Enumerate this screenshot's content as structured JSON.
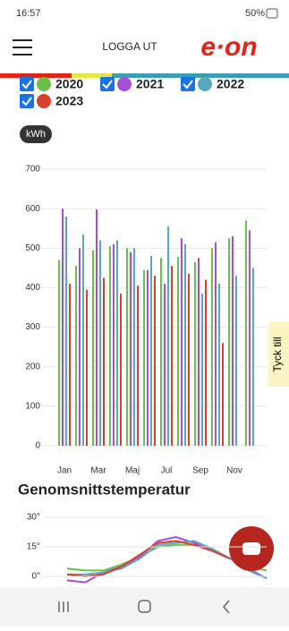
{
  "status_bar": {
    "time": "16:57",
    "battery": "50%"
  },
  "header": {
    "title": "LOGGA UT",
    "logo": "e·on"
  },
  "feedback": "Tyck till",
  "chart_data": [
    {
      "type": "bar",
      "y_label": "kWh",
      "categories": [
        "Jan",
        null,
        "Mar",
        null,
        "Maj",
        null,
        "Jul",
        null,
        "Sep",
        null,
        "Nov",
        null
      ],
      "series": [
        {
          "name": "2020",
          "color": "#6abf4b",
          "values": [
            470,
            455,
            495,
            505,
            500,
            445,
            475,
            478,
            465,
            500,
            525,
            570
          ]
        },
        {
          "name": "2021",
          "color": "#a64fd6",
          "values": [
            600,
            500,
            598,
            510,
            490,
            445,
            410,
            525,
            475,
            515,
            530,
            545
          ]
        },
        {
          "name": "2022",
          "color": "#5aa8c0",
          "values": [
            580,
            535,
            520,
            520,
            500,
            480,
            555,
            510,
            385,
            410,
            430,
            450
          ]
        },
        {
          "name": "2023",
          "color": "#d9412c",
          "values": [
            410,
            395,
            425,
            385,
            405,
            430,
            455,
            435,
            420,
            260,
            null,
            null
          ]
        }
      ],
      "ylim": [
        0,
        700
      ],
      "yticks": [
        0,
        100,
        200,
        300,
        400,
        500,
        600,
        700
      ],
      "grid": true
    },
    {
      "type": "line",
      "title": "Genomsnittstemperatur",
      "series": [
        {
          "color": "#6abf4b",
          "values": [
            4,
            3,
            3,
            6,
            10,
            15,
            16,
            16,
            14,
            9,
            5,
            3
          ]
        },
        {
          "color": "#a64fd6",
          "values": [
            -2,
            -3,
            2,
            5,
            10,
            18,
            20,
            17,
            13,
            9,
            4,
            -1
          ]
        },
        {
          "color": "#5aa8c0",
          "values": [
            1,
            1,
            2,
            4,
            9,
            16,
            17,
            18,
            14,
            9,
            3,
            -1
          ]
        },
        {
          "color": "#d9412c",
          "values": [
            1,
            0,
            1,
            5,
            11,
            17,
            18,
            16,
            13,
            9,
            null,
            null
          ]
        }
      ],
      "ylim": [
        -5,
        35
      ],
      "yticks": [
        {
          "value": 0,
          "label": "0°"
        },
        {
          "value": 15,
          "label": "15°"
        },
        {
          "value": 30,
          "label": "30°"
        }
      ],
      "grid": true
    }
  ]
}
